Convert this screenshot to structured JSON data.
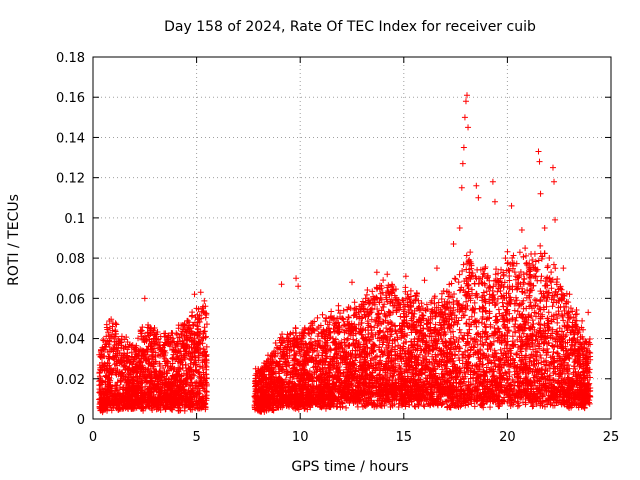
{
  "chart_data": {
    "type": "scatter",
    "title": "Day 158 of 2024, Rate Of TEC Index for receiver cuib",
    "xlabel": "GPS time / hours",
    "ylabel": "ROTI / TECUs",
    "xlim": [
      0,
      25
    ],
    "ylim": [
      0,
      0.18
    ],
    "xticks": [
      0,
      5,
      10,
      15,
      20,
      25
    ],
    "yticks": [
      0,
      0.02,
      0.04,
      0.06,
      0.08,
      0.1,
      0.12,
      0.14,
      0.16,
      0.18
    ],
    "xtick_labels": [
      "0",
      "5",
      "10",
      "15",
      "20",
      "25"
    ],
    "ytick_labels": [
      "0",
      "0.02",
      "0.04",
      "0.06",
      "0.08",
      "0.1",
      "0.12",
      "0.14",
      "0.16",
      "0.18"
    ],
    "grid": true,
    "marker": "+",
    "color": "#ff0000",
    "series": [
      {
        "name": "ROTI",
        "segments": [
          {
            "x": [
              0.3,
              0.5,
              0.7,
              1.0,
              1.3,
              1.6,
              2.0,
              2.5,
              3.0,
              3.5,
              4.0,
              4.5,
              5.0,
              5.3,
              5.5
            ],
            "base": [
              0.008,
              0.008,
              0.009,
              0.01,
              0.01,
              0.01,
              0.01,
              0.01,
              0.01,
              0.01,
              0.01,
              0.01,
              0.01,
              0.01,
              0.01
            ],
            "top": [
              0.03,
              0.038,
              0.045,
              0.046,
              0.04,
              0.036,
              0.034,
              0.048,
              0.042,
              0.04,
              0.04,
              0.046,
              0.052,
              0.056,
              0.05
            ]
          },
          {
            "x": [
              7.8,
              8.2,
              8.6,
              9.0,
              9.5,
              10.0,
              10.5,
              11.0,
              11.5,
              12.0,
              12.5,
              13.0,
              13.5,
              14.0,
              14.5,
              15.0,
              15.5,
              16.0,
              16.5,
              17.0,
              17.5,
              18.0,
              18.5,
              19.0,
              19.5,
              20.0,
              20.5,
              21.0,
              21.5,
              22.0,
              22.5,
              23.0,
              23.5,
              24.0
            ],
            "base": [
              0.008,
              0.008,
              0.009,
              0.01,
              0.01,
              0.01,
              0.011,
              0.012,
              0.012,
              0.013,
              0.013,
              0.014,
              0.014,
              0.014,
              0.014,
              0.014,
              0.014,
              0.014,
              0.014,
              0.014,
              0.014,
              0.014,
              0.014,
              0.014,
              0.014,
              0.014,
              0.014,
              0.014,
              0.014,
              0.014,
              0.014,
              0.013,
              0.012,
              0.012
            ],
            "top": [
              0.022,
              0.024,
              0.03,
              0.036,
              0.042,
              0.04,
              0.044,
              0.046,
              0.048,
              0.05,
              0.05,
              0.054,
              0.06,
              0.062,
              0.062,
              0.06,
              0.058,
              0.052,
              0.056,
              0.06,
              0.068,
              0.078,
              0.072,
              0.07,
              0.068,
              0.078,
              0.08,
              0.076,
              0.078,
              0.078,
              0.066,
              0.054,
              0.044,
              0.034
            ]
          }
        ],
        "outliers": [
          {
            "x": 2.5,
            "y": 0.06
          },
          {
            "x": 4.9,
            "y": 0.062
          },
          {
            "x": 5.2,
            "y": 0.063
          },
          {
            "x": 9.1,
            "y": 0.067
          },
          {
            "x": 9.8,
            "y": 0.07
          },
          {
            "x": 9.9,
            "y": 0.066
          },
          {
            "x": 12.5,
            "y": 0.068
          },
          {
            "x": 13.7,
            "y": 0.073
          },
          {
            "x": 14.2,
            "y": 0.072
          },
          {
            "x": 15.1,
            "y": 0.071
          },
          {
            "x": 16.0,
            "y": 0.069
          },
          {
            "x": 16.6,
            "y": 0.075
          },
          {
            "x": 17.4,
            "y": 0.087
          },
          {
            "x": 17.7,
            "y": 0.095
          },
          {
            "x": 17.8,
            "y": 0.115
          },
          {
            "x": 17.85,
            "y": 0.127
          },
          {
            "x": 17.9,
            "y": 0.135
          },
          {
            "x": 17.95,
            "y": 0.15
          },
          {
            "x": 18.0,
            "y": 0.158
          },
          {
            "x": 18.05,
            "y": 0.161
          },
          {
            "x": 18.1,
            "y": 0.145
          },
          {
            "x": 18.5,
            "y": 0.116
          },
          {
            "x": 18.6,
            "y": 0.11
          },
          {
            "x": 19.3,
            "y": 0.118
          },
          {
            "x": 19.4,
            "y": 0.108
          },
          {
            "x": 20.2,
            "y": 0.106
          },
          {
            "x": 20.7,
            "y": 0.094
          },
          {
            "x": 21.5,
            "y": 0.133
          },
          {
            "x": 21.55,
            "y": 0.128
          },
          {
            "x": 21.6,
            "y": 0.112
          },
          {
            "x": 21.8,
            "y": 0.095
          },
          {
            "x": 22.2,
            "y": 0.125
          },
          {
            "x": 22.25,
            "y": 0.118
          },
          {
            "x": 22.3,
            "y": 0.099
          },
          {
            "x": 22.7,
            "y": 0.075
          },
          {
            "x": 23.0,
            "y": 0.062
          },
          {
            "x": 23.9,
            "y": 0.053
          }
        ]
      }
    ]
  }
}
